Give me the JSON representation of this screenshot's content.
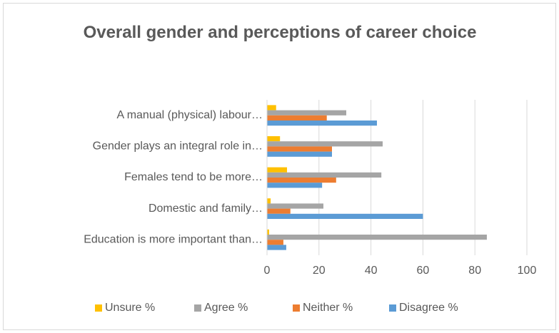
{
  "chart_data": {
    "type": "bar",
    "orientation": "horizontal",
    "title": "Overall gender and perceptions of career choice",
    "categories": [
      "A manual (physical) labour…",
      "Gender plays an integral role in…",
      "Females tend to be more…",
      "Domestic and family…",
      "Education is more important than…"
    ],
    "series": [
      {
        "name": "Unsure %",
        "color": "#ffc000",
        "values": [
          3.5,
          5,
          7.7,
          1.4,
          0.8
        ]
      },
      {
        "name": "Agree %",
        "color": "#a5a5a5",
        "values": [
          30.5,
          44.5,
          44,
          21.7,
          84.6
        ]
      },
      {
        "name": "Neither %",
        "color": "#ed7d31",
        "values": [
          23,
          25,
          26.6,
          9,
          6.3
        ]
      },
      {
        "name": "Disagree %",
        "color": "#5b9bd5",
        "values": [
          42.3,
          25,
          21.2,
          60,
          7.4
        ]
      }
    ],
    "xlim": [
      0,
      100
    ],
    "xticks": [
      0,
      20,
      40,
      60,
      80,
      100
    ],
    "grid": true,
    "legend": "bottom"
  }
}
